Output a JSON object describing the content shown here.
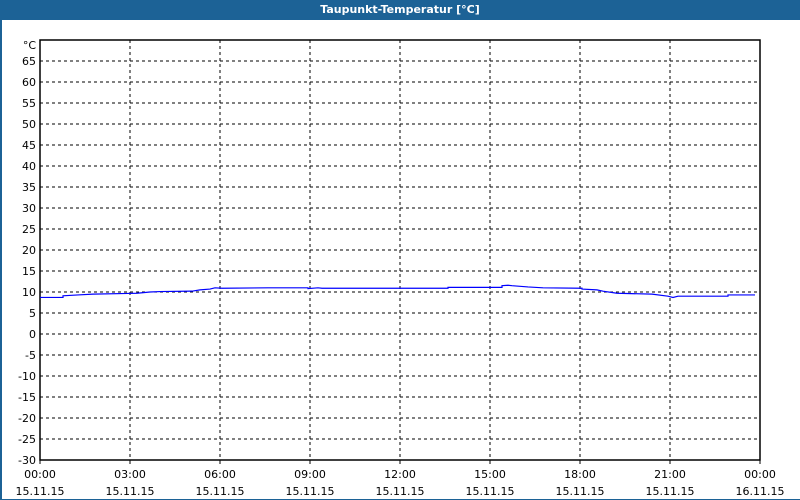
{
  "window": {
    "title": "Taupunkt-Temperatur [°C]"
  },
  "chart_data": {
    "type": "line",
    "title": "Taupunkt-Temperatur [°C]",
    "ylabel": "°C",
    "ylim": [
      -30,
      70
    ],
    "yticks": [
      65,
      60,
      55,
      50,
      45,
      40,
      35,
      30,
      25,
      20,
      15,
      10,
      5,
      0,
      -5,
      -10,
      -15,
      -20,
      -25,
      -30
    ],
    "xlim": [
      "15.11.15 00:00",
      "16.11.15 00:00"
    ],
    "xticks": [
      {
        "time": "00:00",
        "date": "15.11.15"
      },
      {
        "time": "03:00",
        "date": "15.11.15"
      },
      {
        "time": "06:00",
        "date": "15.11.15"
      },
      {
        "time": "09:00",
        "date": "15.11.15"
      },
      {
        "time": "12:00",
        "date": "15.11.15"
      },
      {
        "time": "15:00",
        "date": "15.11.15"
      },
      {
        "time": "18:00",
        "date": "15.11.15"
      },
      {
        "time": "21:00",
        "date": "15.11.15"
      },
      {
        "time": "00:00",
        "date": "16.11.15"
      }
    ],
    "grid": true,
    "line_color": "#0000ff",
    "series": [
      {
        "points": [
          [
            "00:00",
            8.7
          ],
          [
            "00:46",
            8.7
          ],
          [
            "00:46",
            9.1
          ],
          [
            "01:16",
            9.3
          ],
          [
            "01:46",
            9.5
          ],
          [
            "03:14",
            9.7
          ],
          [
            "03:40",
            10.0
          ],
          [
            "04:00",
            10.1
          ],
          [
            "05:04",
            10.2
          ],
          [
            "05:20",
            10.5
          ],
          [
            "05:40",
            10.7
          ],
          [
            "05:50",
            11.0
          ],
          [
            "06:04",
            10.9
          ],
          [
            "07:36",
            11.0
          ],
          [
            "08:56",
            11.0
          ],
          [
            "08:56",
            10.8
          ],
          [
            "09:16",
            11.0
          ],
          [
            "09:24",
            10.9
          ],
          [
            "13:36",
            10.9
          ],
          [
            "13:36",
            11.1
          ],
          [
            "15:24",
            11.1
          ],
          [
            "15:24",
            11.5
          ],
          [
            "15:36",
            11.6
          ],
          [
            "15:44",
            11.5
          ],
          [
            "16:16",
            11.2
          ],
          [
            "16:46",
            11.0
          ],
          [
            "18:04",
            10.9
          ],
          [
            "18:04",
            10.7
          ],
          [
            "18:34",
            10.5
          ],
          [
            "18:46",
            10.2
          ],
          [
            "19:14",
            9.7
          ],
          [
            "20:24",
            9.5
          ],
          [
            "20:56",
            9.0
          ],
          [
            "21:06",
            8.7
          ],
          [
            "21:16",
            9.0
          ],
          [
            "22:56",
            9.0
          ],
          [
            "22:56",
            9.3
          ],
          [
            "23:50",
            9.3
          ]
        ]
      }
    ]
  }
}
